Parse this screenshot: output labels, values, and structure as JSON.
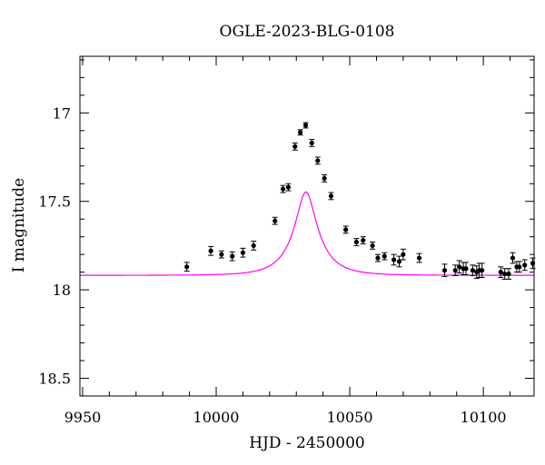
{
  "chart_data": {
    "type": "scatter",
    "title": "OGLE-2023-BLG-0108",
    "xlabel": "HJD - 2450000",
    "ylabel": "I magnitude",
    "xlim": [
      9949,
      10119
    ],
    "ylim": [
      18.6,
      16.68
    ],
    "y_inverted": true,
    "grid": false,
    "x_ticks": [
      9950,
      10000,
      10050,
      10100
    ],
    "x_tick_labels": [
      "9950",
      "10000",
      "10050",
      "10100"
    ],
    "y_ticks": [
      17,
      17.5,
      18,
      18.5
    ],
    "y_tick_labels": [
      "17",
      "17.5",
      "18",
      "18.5"
    ],
    "colors": {
      "points": "#000000",
      "model": "#ff00ff",
      "frame": "#000000"
    },
    "model": {
      "name": "",
      "kind": "point-lens microlensing fit",
      "t0": 10033.6,
      "tE": 11.0,
      "u0": 0.3355,
      "f_source": 0.258,
      "I_baseline": 17.918
    },
    "series": [
      {
        "name": "",
        "x": [
          9989,
          9998,
          10002,
          10006,
          10010,
          10014,
          10022,
          10025,
          10027,
          10029.5,
          10031.5,
          10033.5,
          10035.8,
          10038,
          10040.5,
          10043,
          10048.5,
          10052.5,
          10055,
          10058.5,
          10060.5,
          10063,
          10066.5,
          10068.5,
          10070,
          10076,
          10085.5,
          10089.5,
          10091,
          10092.5,
          10093.5,
          10096,
          10097.5,
          10098.5,
          10099.5,
          10106.5,
          10108,
          10109.5,
          10111,
          10112.5,
          10113.5,
          10115.5,
          10118.5
        ],
        "y": [
          17.87,
          17.78,
          17.8,
          17.81,
          17.79,
          17.75,
          17.61,
          17.43,
          17.42,
          17.19,
          17.11,
          17.07,
          17.17,
          17.27,
          17.37,
          17.47,
          17.66,
          17.73,
          17.72,
          17.75,
          17.82,
          17.81,
          17.83,
          17.84,
          17.8,
          17.82,
          17.89,
          17.89,
          17.87,
          17.88,
          17.88,
          17.89,
          17.9,
          17.89,
          17.89,
          17.9,
          17.91,
          17.91,
          17.82,
          17.87,
          17.87,
          17.86,
          17.85
        ],
        "err": [
          0.025,
          0.025,
          0.02,
          0.025,
          0.025,
          0.025,
          0.02,
          0.02,
          0.02,
          0.02,
          0.015,
          0.015,
          0.02,
          0.02,
          0.02,
          0.02,
          0.02,
          0.02,
          0.02,
          0.02,
          0.02,
          0.02,
          0.03,
          0.03,
          0.03,
          0.025,
          0.035,
          0.03,
          0.035,
          0.035,
          0.035,
          0.03,
          0.035,
          0.04,
          0.04,
          0.03,
          0.03,
          0.03,
          0.03,
          0.03,
          0.03,
          0.03,
          0.03
        ]
      }
    ]
  }
}
